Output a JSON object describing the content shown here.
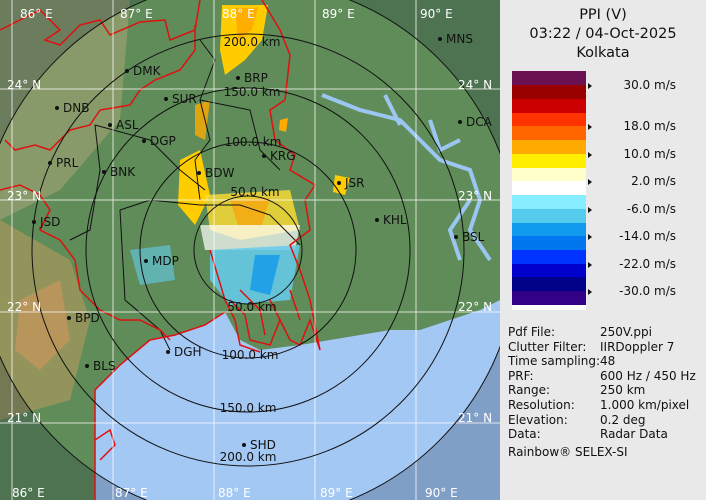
{
  "header": {
    "product": "PPI (V)",
    "datetime": "03:22 / 04-Oct-2025",
    "site": "Kolkata"
  },
  "colorbar": {
    "colors": [
      "#6b1050",
      "#990000",
      "#cc0000",
      "#ff3300",
      "#ff6600",
      "#ffaa00",
      "#ffee00",
      "#ffffcc",
      "#ffffff",
      "#88eeff",
      "#55ccee",
      "#1199ee",
      "#0077ee",
      "#0033ff",
      "#0000cc",
      "#000088",
      "#330088"
    ],
    "labels": [
      "30.0 m/s",
      "18.0 m/s",
      "10.0 m/s",
      "2.0 m/s",
      "-6.0 m/s",
      "-14.0 m/s",
      "-22.0 m/s",
      "-30.0 m/s"
    ]
  },
  "info": [
    {
      "label": "Pdf File:",
      "value": "250V.ppi"
    },
    {
      "label": "Clutter Filter:",
      "value": "IIRDoppler 7"
    },
    {
      "label": "Time sampling:",
      "value": "48"
    },
    {
      "label": "PRF:",
      "value": "600 Hz / 450 Hz"
    },
    {
      "label": "Range:",
      "value": "250 km"
    },
    {
      "label": "Resolution:",
      "value": "1.000 km/pixel"
    },
    {
      "label": "Elevation:",
      "value": "0.2 deg"
    },
    {
      "label": "Data:",
      "value": "Radar Data"
    }
  ],
  "footer": "Rainbow® SELEX-SI",
  "map": {
    "lon_labels": [
      "86° E",
      "87° E",
      "88° E",
      "89° E",
      "90° E"
    ],
    "lat_labels": [
      "24° N",
      "23° N",
      "22° N",
      "21° N"
    ],
    "range_labels": [
      "50.0 km",
      "100.0 km",
      "150.0 km",
      "200.0 km"
    ],
    "cities": [
      "DMK",
      "DNB",
      "SUR",
      "ASL",
      "DGP",
      "BRP",
      "BDW",
      "KRG",
      "JSR",
      "KHL",
      "MNS",
      "DCA",
      "BSL",
      "PRL",
      "BNK",
      "JSD",
      "MDP",
      "BPD",
      "BLS",
      "DGH",
      "SHD"
    ]
  }
}
